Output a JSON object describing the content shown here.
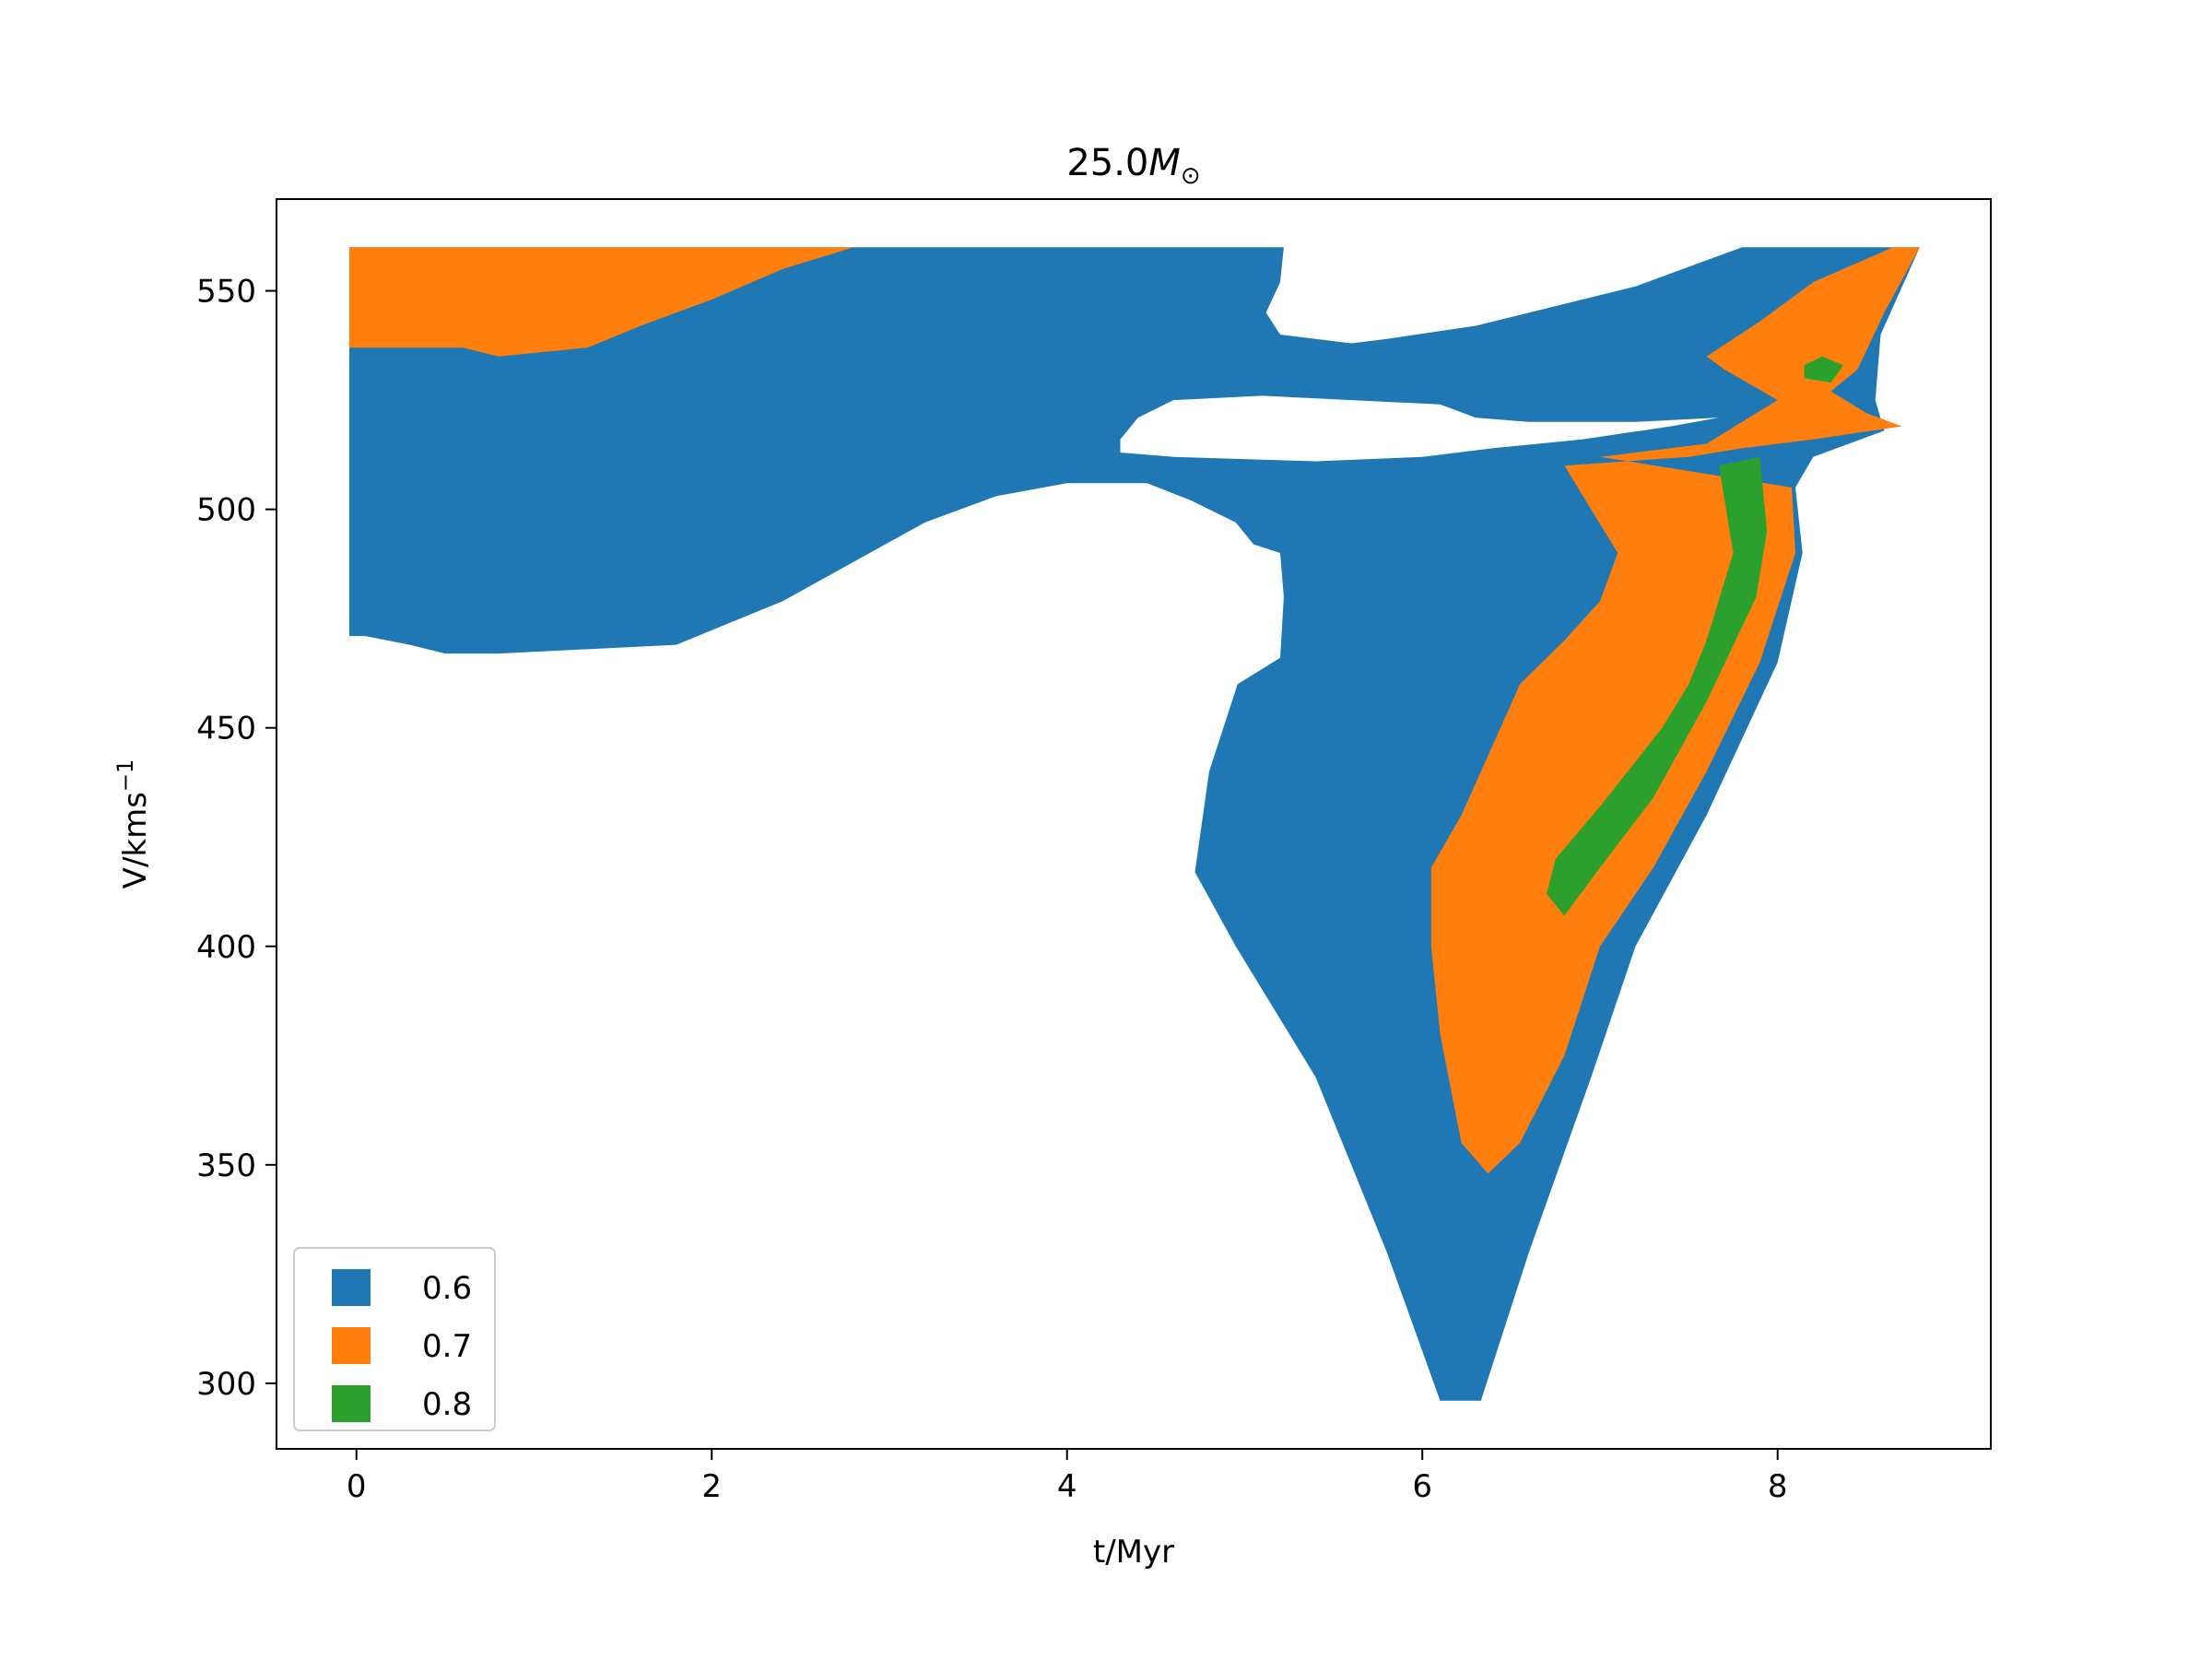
{
  "chart_data": {
    "type": "heatmap",
    "title_prefix": "25.0",
    "title_symbol": "M",
    "title_subscript": "⊙",
    "xlabel": "t/Myr",
    "ylabel_prefix": "V/kms",
    "ylabel_superscript": "−1",
    "xlim": [
      -0.45,
      9.2
    ],
    "ylim": [
      285,
      571
    ],
    "x_ticks": [
      0,
      2,
      4,
      6,
      8
    ],
    "y_ticks": [
      300,
      350,
      400,
      450,
      500,
      550
    ],
    "legend_placement": "lower-left",
    "grid": false,
    "series": [
      {
        "name": "0.6",
        "color": "#1f77b4",
        "regions": [
          [
            [
              -0.04,
              560
            ],
            [
              5.22,
              560
            ],
            [
              5.2,
              552
            ],
            [
              5.12,
              545
            ],
            [
              5.2,
              540
            ],
            [
              5.6,
              538
            ],
            [
              5.8,
              539
            ],
            [
              6.3,
              542
            ],
            [
              6.8,
              547
            ],
            [
              7.2,
              551
            ],
            [
              7.6,
              557
            ],
            [
              7.8,
              560
            ],
            [
              8.8,
              560
            ],
            [
              8.58,
              540
            ],
            [
              8.55,
              525
            ],
            [
              8.6,
              518
            ],
            [
              8.2,
              512
            ],
            [
              8.1,
              505
            ],
            [
              8.14,
              490
            ],
            [
              8.0,
              465
            ],
            [
              7.6,
              430
            ],
            [
              7.2,
              400
            ],
            [
              6.95,
              370
            ],
            [
              6.6,
              330
            ],
            [
              6.33,
              296
            ],
            [
              6.1,
              296
            ],
            [
              5.8,
              330
            ],
            [
              5.4,
              370
            ],
            [
              4.95,
              400
            ],
            [
              4.72,
              417
            ],
            [
              4.8,
              440
            ],
            [
              4.96,
              460
            ],
            [
              5.2,
              466
            ],
            [
              5.22,
              480
            ],
            [
              5.2,
              490
            ],
            [
              5.05,
              492
            ],
            [
              4.95,
              497
            ],
            [
              4.7,
              502
            ],
            [
              4.45,
              506
            ],
            [
              4.0,
              506
            ],
            [
              3.6,
              503
            ],
            [
              3.2,
              497
            ],
            [
              2.8,
              488
            ],
            [
              2.4,
              479
            ],
            [
              2.1,
              474
            ],
            [
              1.8,
              469
            ],
            [
              0.8,
              467
            ],
            [
              0.5,
              467
            ],
            [
              0.3,
              469
            ],
            [
              0.05,
              471
            ],
            [
              -0.04,
              471
            ]
          ]
        ],
        "holes": [
          [
            [
              4.3,
              513
            ],
            [
              4.6,
              512
            ],
            [
              5.4,
              511
            ],
            [
              6.0,
              512
            ],
            [
              6.4,
              514
            ],
            [
              6.9,
              516
            ],
            [
              7.4,
              519
            ],
            [
              7.67,
              521
            ],
            [
              7.2,
              520
            ],
            [
              6.6,
              520
            ],
            [
              6.3,
              521
            ],
            [
              6.1,
              524
            ],
            [
              5.1,
              526
            ],
            [
              4.6,
              525
            ],
            [
              4.4,
              521
            ],
            [
              4.3,
              516
            ]
          ]
        ]
      },
      {
        "name": "0.7",
        "color": "#ff7f0e",
        "regions": [
          [
            [
              -0.04,
              560
            ],
            [
              2.8,
              560
            ],
            [
              2.4,
              555
            ],
            [
              2.0,
              548
            ],
            [
              1.6,
              542
            ],
            [
              1.3,
              537
            ],
            [
              0.8,
              535
            ],
            [
              0.6,
              537
            ],
            [
              -0.04,
              537
            ]
          ],
          [
            [
              6.8,
              510
            ],
            [
              7.5,
              512
            ],
            [
              7.8,
              514
            ],
            [
              8.2,
              516
            ],
            [
              8.7,
              519
            ],
            [
              8.5,
              522
            ],
            [
              8.3,
              527
            ],
            [
              8.45,
              532
            ],
            [
              8.6,
              545
            ],
            [
              8.8,
              560
            ],
            [
              8.65,
              560
            ],
            [
              8.2,
              552
            ],
            [
              7.9,
              543
            ],
            [
              7.6,
              535
            ],
            [
              7.7,
              532
            ],
            [
              8.0,
              525
            ],
            [
              7.6,
              515
            ],
            [
              7.0,
              512
            ],
            [
              8.08,
              505
            ],
            [
              8.1,
              490
            ],
            [
              7.9,
              465
            ],
            [
              7.6,
              440
            ],
            [
              7.3,
              418
            ],
            [
              7.0,
              400
            ],
            [
              6.8,
              375
            ],
            [
              6.55,
              355
            ],
            [
              6.37,
              348
            ],
            [
              6.22,
              355
            ],
            [
              6.1,
              380
            ],
            [
              6.05,
              400
            ],
            [
              6.05,
              418
            ],
            [
              6.22,
              430
            ],
            [
              6.55,
              460
            ],
            [
              6.8,
              470
            ],
            [
              7.0,
              479
            ],
            [
              7.1,
              490
            ],
            [
              6.8,
              510
            ]
          ]
        ]
      },
      {
        "name": "0.8",
        "color": "#2ca02c",
        "regions": [
          [
            [
              7.67,
              510
            ],
            [
              7.9,
              512
            ],
            [
              7.94,
              495
            ],
            [
              7.88,
              480
            ],
            [
              7.6,
              456
            ],
            [
              7.3,
              434
            ],
            [
              7.0,
              418
            ],
            [
              6.8,
              407
            ],
            [
              6.7,
              412
            ],
            [
              6.75,
              420
            ],
            [
              7.0,
              432
            ],
            [
              7.35,
              450
            ],
            [
              7.5,
              460
            ],
            [
              7.6,
              470
            ],
            [
              7.75,
              490
            ],
            [
              7.67,
              510
            ]
          ],
          [
            [
              8.15,
              530
            ],
            [
              8.3,
              529
            ],
            [
              8.37,
              533
            ],
            [
              8.25,
              535
            ],
            [
              8.15,
              533
            ]
          ]
        ]
      }
    ]
  }
}
